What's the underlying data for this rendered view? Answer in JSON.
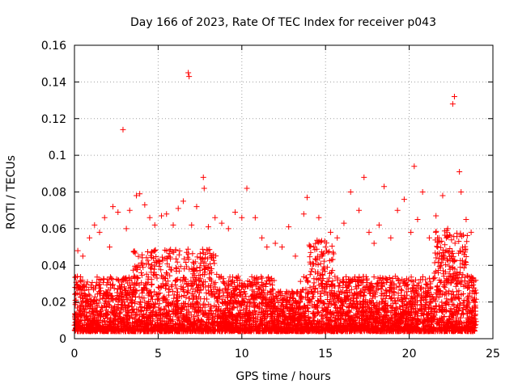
{
  "chart_data": {
    "type": "scatter",
    "title": "Day 166 of 2023, Rate Of TEC Index for receiver p043",
    "xlabel": "GPS time / hours",
    "ylabel": "ROTI / TECUs",
    "xlim": [
      0,
      25
    ],
    "ylim": [
      0,
      0.16
    ],
    "xticks": [
      0,
      5,
      10,
      15,
      20,
      25
    ],
    "xtick_labels": [
      "0",
      "5",
      "10",
      "15",
      "20",
      "25"
    ],
    "yticks": [
      0,
      0.02,
      0.04,
      0.06,
      0.08,
      0.1,
      0.12,
      0.14,
      0.16
    ],
    "ytick_labels": [
      "0",
      "0.02",
      "0.04",
      "0.06",
      "0.08",
      "0.1",
      "0.12",
      "0.14",
      "0.16"
    ],
    "grid": true,
    "marker": "plus",
    "colors": {
      "series": "#ff0000",
      "grid": "#a0a0a0",
      "axis": "#000000"
    },
    "series": [
      {
        "name": "",
        "points": [
          [
            0.2,
            0.048
          ],
          [
            0.5,
            0.045
          ],
          [
            0.9,
            0.055
          ],
          [
            1.2,
            0.062
          ],
          [
            1.5,
            0.058
          ],
          [
            1.8,
            0.066
          ],
          [
            2.1,
            0.05
          ],
          [
            2.3,
            0.072
          ],
          [
            2.6,
            0.069
          ],
          [
            2.9,
            0.114
          ],
          [
            3.1,
            0.06
          ],
          [
            3.3,
            0.07
          ],
          [
            3.7,
            0.078
          ],
          [
            3.9,
            0.079
          ],
          [
            4.2,
            0.073
          ],
          [
            4.5,
            0.066
          ],
          [
            4.8,
            0.062
          ],
          [
            5.2,
            0.067
          ],
          [
            5.5,
            0.068
          ],
          [
            5.9,
            0.062
          ],
          [
            6.2,
            0.071
          ],
          [
            6.5,
            0.075
          ],
          [
            6.8,
            0.145
          ],
          [
            6.85,
            0.143
          ],
          [
            7.0,
            0.062
          ],
          [
            7.3,
            0.072
          ],
          [
            7.7,
            0.088
          ],
          [
            7.75,
            0.082
          ],
          [
            8.0,
            0.061
          ],
          [
            8.4,
            0.066
          ],
          [
            8.8,
            0.063
          ],
          [
            9.2,
            0.06
          ],
          [
            9.6,
            0.069
          ],
          [
            10.0,
            0.066
          ],
          [
            10.3,
            0.082
          ],
          [
            10.8,
            0.066
          ],
          [
            11.2,
            0.055
          ],
          [
            11.5,
            0.05
          ],
          [
            12.0,
            0.052
          ],
          [
            12.4,
            0.05
          ],
          [
            12.8,
            0.061
          ],
          [
            13.2,
            0.045
          ],
          [
            13.7,
            0.068
          ],
          [
            13.9,
            0.077
          ],
          [
            14.3,
            0.05
          ],
          [
            14.6,
            0.066
          ],
          [
            15.0,
            0.05
          ],
          [
            15.3,
            0.058
          ],
          [
            15.7,
            0.055
          ],
          [
            16.1,
            0.063
          ],
          [
            16.5,
            0.08
          ],
          [
            17.0,
            0.07
          ],
          [
            17.3,
            0.088
          ],
          [
            17.6,
            0.058
          ],
          [
            17.9,
            0.052
          ],
          [
            18.2,
            0.062
          ],
          [
            18.5,
            0.083
          ],
          [
            18.9,
            0.055
          ],
          [
            19.3,
            0.07
          ],
          [
            19.7,
            0.076
          ],
          [
            20.1,
            0.058
          ],
          [
            20.3,
            0.094
          ],
          [
            20.5,
            0.065
          ],
          [
            20.8,
            0.08
          ],
          [
            21.2,
            0.055
          ],
          [
            21.6,
            0.067
          ],
          [
            22.0,
            0.078
          ],
          [
            22.3,
            0.06
          ],
          [
            22.6,
            0.128
          ],
          [
            22.7,
            0.132
          ],
          [
            23.0,
            0.091
          ],
          [
            23.1,
            0.08
          ],
          [
            23.4,
            0.065
          ],
          [
            23.7,
            0.058
          ]
        ]
      }
    ]
  }
}
